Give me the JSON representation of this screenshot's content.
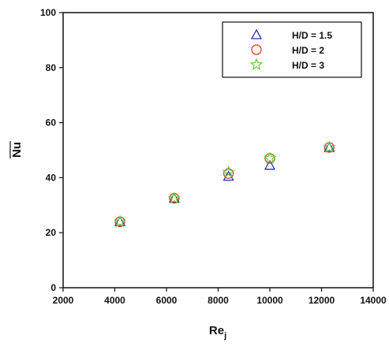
{
  "chart_data": {
    "type": "scatter",
    "xlabel": "Re",
    "xlabel_sub": "j",
    "ylabel": "Nu",
    "xlim": [
      2000,
      14000
    ],
    "ylim": [
      0,
      100
    ],
    "xticks": [
      "2000",
      "4000",
      "6000",
      "8000",
      "10000",
      "12000",
      "14000"
    ],
    "yticks": [
      "0",
      "20",
      "40",
      "60",
      "80",
      "100"
    ],
    "grid": false,
    "legend_position": "top-right",
    "series": [
      {
        "name": "H/D = 1.5",
        "marker": "triangle",
        "color": "#2b2bb0",
        "x": [
          4200,
          6300,
          8400,
          10000,
          12300
        ],
        "y": [
          24.0,
          32.5,
          40.5,
          44.5,
          51.0
        ]
      },
      {
        "name": "H/D = 2",
        "marker": "circle",
        "color": "#e03a2c",
        "x": [
          4200,
          6300,
          8400,
          10000,
          12300
        ],
        "y": [
          24.0,
          32.5,
          41.5,
          47.0,
          51.0
        ]
      },
      {
        "name": "H/D = 3",
        "marker": "star",
        "color": "#5ecf3c",
        "x": [
          4200,
          6300,
          8400,
          10000,
          12300
        ],
        "y": [
          24.0,
          32.5,
          42.0,
          47.0,
          51.0
        ]
      }
    ]
  }
}
